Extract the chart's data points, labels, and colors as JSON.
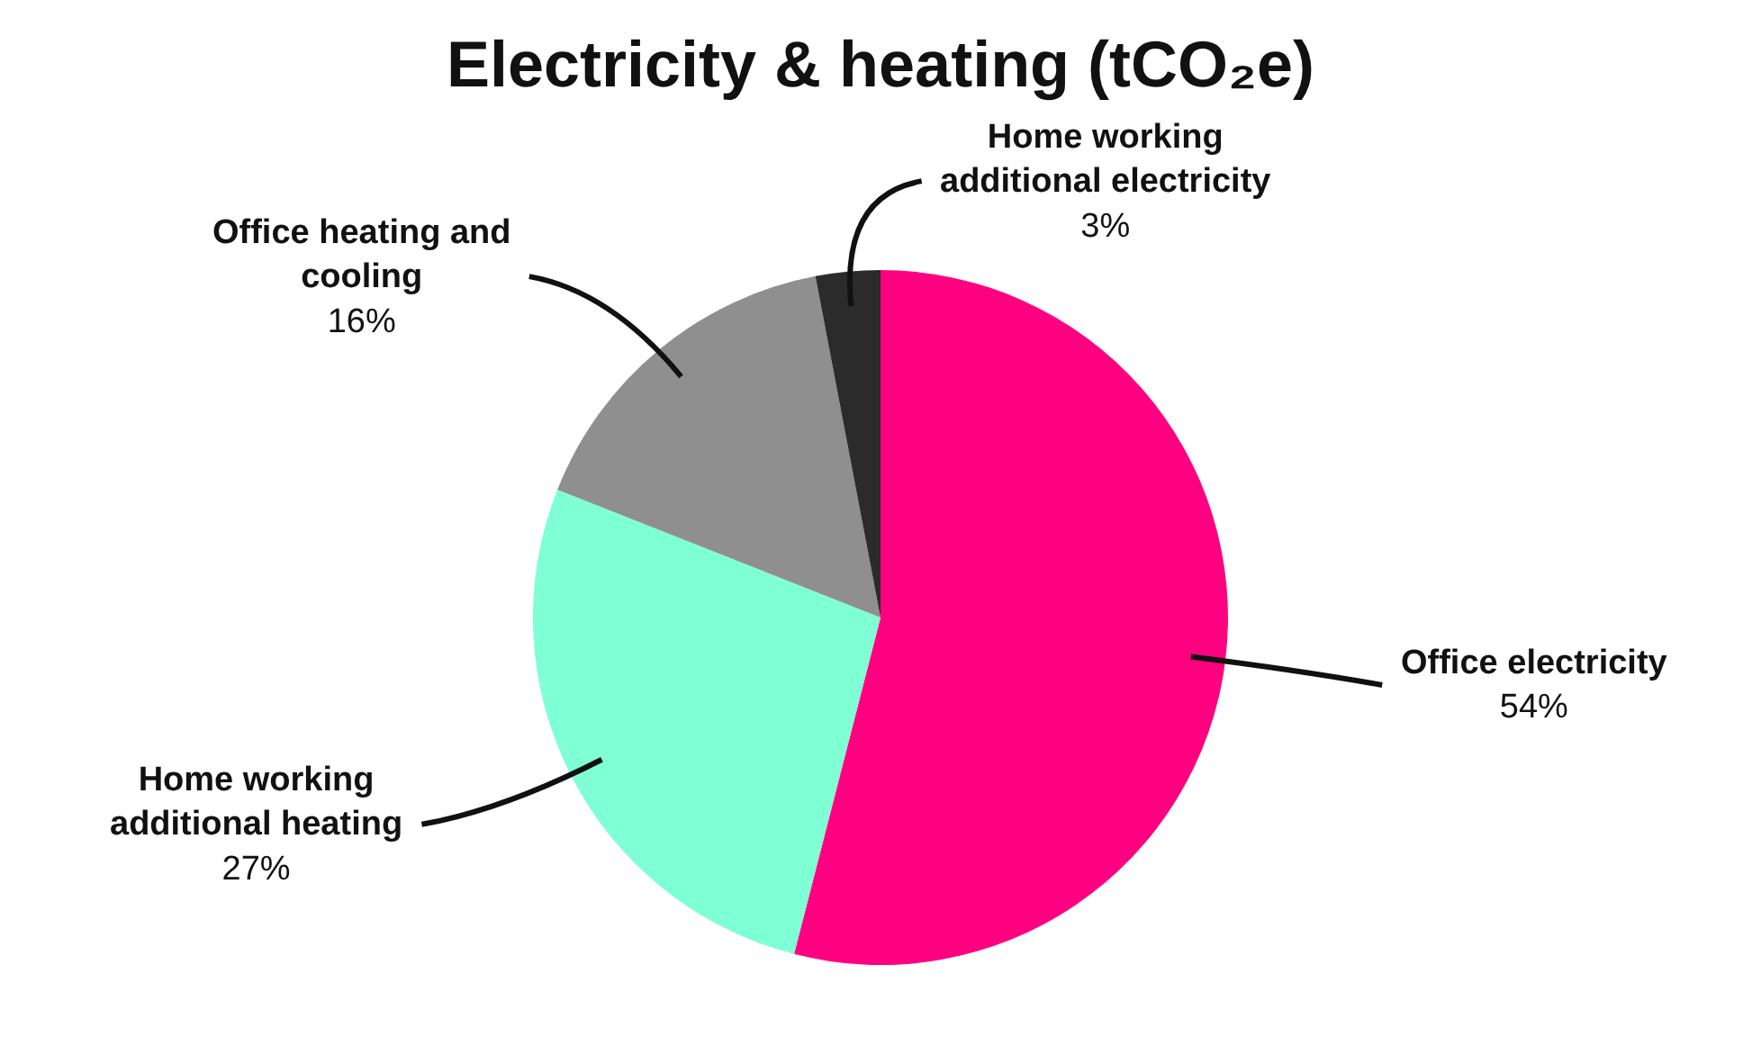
{
  "chart_data": {
    "type": "pie",
    "title": "Electricity & heating (tCO₂e)",
    "categories": [
      "Office electricity",
      "Home working additional heating",
      "Office heating and cooling",
      "Home working additional electricity"
    ],
    "values": [
      54,
      27,
      16,
      3
    ],
    "value_labels": [
      "54%",
      "27%",
      "16%",
      "3%"
    ],
    "colors": [
      "#ff0080",
      "#7fffd4",
      "#8f8f8f",
      "#2b2b2b"
    ],
    "legend": false
  }
}
